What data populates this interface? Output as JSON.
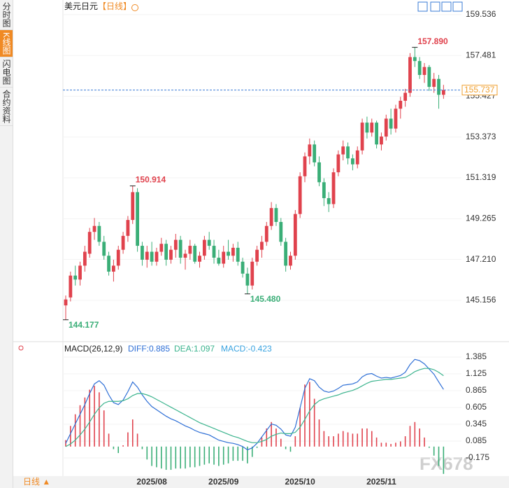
{
  "sidebar": {
    "tabs": [
      "分时图",
      "K线图",
      "闪电图",
      "合约资料"
    ]
  },
  "chart_data": {
    "type": "candlestick",
    "title": "美元日元",
    "period": "【日线】",
    "up_color": "#e0424d",
    "down_color": "#3aae77",
    "categories": [
      null,
      null,
      null,
      null,
      null,
      null,
      null,
      null,
      null,
      null,
      null,
      null,
      null,
      null,
      null,
      null,
      null,
      null,
      "2025/08",
      null,
      null,
      null,
      null,
      null,
      null,
      null,
      null,
      null,
      null,
      null,
      null,
      null,
      null,
      "2025/09",
      null,
      null,
      null,
      null,
      null,
      null,
      null,
      null,
      null,
      null,
      null,
      null,
      null,
      null,
      null,
      "2025/10",
      null,
      null,
      null,
      null,
      null,
      null,
      null,
      null,
      null,
      null,
      null,
      null,
      null,
      null,
      null,
      null,
      "2025/11",
      null,
      null,
      null,
      null,
      null,
      null,
      null,
      null,
      null,
      null,
      null,
      null,
      null
    ],
    "candles": [
      [
        144.9,
        145.4,
        144.177,
        145.2
      ],
      [
        145.3,
        146.6,
        145.1,
        146.4
      ],
      [
        146.4,
        146.9,
        145.9,
        146.2
      ],
      [
        146.2,
        147.1,
        145.9,
        146.9
      ],
      [
        146.9,
        147.9,
        146.6,
        147.6
      ],
      [
        147.5,
        148.8,
        147.3,
        148.6
      ],
      [
        148.6,
        149.3,
        148.2,
        148.9
      ],
      [
        148.9,
        149.1,
        147.9,
        148.1
      ],
      [
        148.1,
        148.4,
        147.2,
        147.4
      ],
      [
        147.4,
        147.6,
        146.4,
        146.6
      ],
      [
        146.6,
        147.2,
        146.1,
        146.9
      ],
      [
        146.9,
        147.9,
        146.7,
        147.7
      ],
      [
        147.7,
        148.6,
        147.5,
        148.4
      ],
      [
        148.4,
        149.4,
        148.1,
        149.2
      ],
      [
        149.2,
        150.914,
        149.0,
        150.6
      ],
      [
        150.6,
        150.8,
        147.6,
        147.9
      ],
      [
        147.9,
        148.1,
        146.9,
        147.2
      ],
      [
        147.2,
        147.9,
        146.8,
        147.6
      ],
      [
        147.6,
        148.1,
        146.9,
        147.1
      ],
      [
        147.1,
        147.8,
        146.9,
        147.6
      ],
      [
        147.6,
        148.3,
        147.4,
        148.0
      ],
      [
        148.0,
        148.2,
        146.9,
        147.2
      ],
      [
        147.2,
        147.9,
        147.0,
        147.7
      ],
      [
        147.7,
        148.5,
        147.3,
        148.2
      ],
      [
        148.2,
        148.4,
        147.0,
        147.3
      ],
      [
        147.3,
        147.7,
        146.7,
        147.5
      ],
      [
        147.5,
        148.2,
        147.2,
        147.9
      ],
      [
        147.9,
        148.0,
        147.0,
        147.1
      ],
      [
        147.1,
        147.6,
        146.8,
        147.4
      ],
      [
        147.4,
        148.4,
        147.2,
        148.2
      ],
      [
        148.2,
        148.6,
        147.7,
        147.9
      ],
      [
        147.9,
        148.2,
        147.0,
        147.3
      ],
      [
        147.3,
        147.7,
        146.9,
        147.0
      ],
      [
        147.0,
        147.9,
        146.8,
        147.6
      ],
      [
        147.6,
        148.2,
        147.2,
        147.4
      ],
      [
        147.4,
        148.0,
        147.1,
        147.8
      ],
      [
        147.8,
        148.1,
        146.9,
        147.1
      ],
      [
        147.1,
        147.3,
        146.3,
        146.5
      ],
      [
        146.5,
        146.8,
        145.48,
        145.9
      ],
      [
        145.9,
        147.3,
        145.7,
        147.1
      ],
      [
        147.1,
        147.9,
        146.9,
        147.7
      ],
      [
        147.7,
        148.4,
        147.3,
        148.1
      ],
      [
        148.1,
        149.1,
        147.9,
        148.9
      ],
      [
        148.9,
        150.1,
        148.7,
        149.8
      ],
      [
        149.8,
        150.0,
        148.9,
        149.1
      ],
      [
        149.1,
        149.3,
        147.9,
        148.1
      ],
      [
        148.1,
        148.3,
        146.6,
        146.9
      ],
      [
        146.9,
        147.6,
        146.7,
        147.4
      ],
      [
        147.4,
        149.7,
        147.2,
        149.5
      ],
      [
        149.5,
        151.6,
        149.3,
        151.4
      ],
      [
        151.4,
        152.6,
        151.1,
        152.4
      ],
      [
        152.4,
        153.3,
        152.0,
        153.0
      ],
      [
        153.0,
        153.2,
        151.9,
        152.1
      ],
      [
        152.1,
        152.4,
        150.9,
        151.1
      ],
      [
        151.1,
        151.3,
        149.9,
        150.3
      ],
      [
        150.3,
        150.6,
        149.6,
        150.0
      ],
      [
        150.0,
        151.8,
        149.8,
        151.6
      ],
      [
        151.6,
        152.7,
        151.4,
        152.5
      ],
      [
        152.5,
        153.2,
        152.2,
        152.9
      ],
      [
        152.9,
        153.1,
        152.0,
        152.3
      ],
      [
        152.3,
        152.5,
        151.7,
        152.0
      ],
      [
        152.0,
        152.9,
        151.8,
        152.7
      ],
      [
        152.7,
        154.3,
        152.5,
        154.1
      ],
      [
        154.1,
        154.4,
        153.3,
        153.6
      ],
      [
        153.6,
        154.3,
        153.4,
        154.1
      ],
      [
        154.1,
        154.2,
        152.8,
        153.0
      ],
      [
        153.0,
        153.6,
        152.7,
        153.4
      ],
      [
        153.4,
        154.5,
        153.2,
        154.3
      ],
      [
        154.3,
        154.8,
        153.5,
        153.8
      ],
      [
        153.8,
        155.0,
        153.6,
        154.8
      ],
      [
        154.8,
        155.4,
        154.3,
        155.2
      ],
      [
        155.2,
        155.8,
        154.9,
        155.6
      ],
      [
        155.6,
        157.6,
        155.4,
        157.4
      ],
      [
        157.4,
        157.89,
        156.9,
        157.2
      ],
      [
        157.2,
        157.4,
        156.3,
        156.5
      ],
      [
        156.5,
        157.1,
        156.1,
        156.9
      ],
      [
        156.9,
        157.0,
        155.7,
        155.9
      ],
      [
        155.9,
        156.6,
        155.6,
        156.3
      ],
      [
        156.3,
        156.5,
        154.8,
        155.5
      ],
      [
        155.5,
        156.0,
        155.3,
        155.737
      ]
    ],
    "ylim": [
      143.18,
      159.99
    ],
    "yticks": [
      159.536,
      157.481,
      155.427,
      153.373,
      151.319,
      149.265,
      {
        "value": 147.21,
        "label": "147.210"
      },
      145.156
    ],
    "last_price": 155.737,
    "last_color": "#f0a030",
    "annotations": [
      {
        "value": 157.89,
        "label": "157.890"
      },
      {
        "value": 150.914,
        "label": "150.914"
      },
      {
        "value": 145.48,
        "label": "145.480"
      },
      {
        "value": 144.177,
        "label": "144.177"
      }
    ],
    "macd": {
      "title": "MACD(26,12,9)",
      "diff_label": "DIFF:0.885",
      "dea_label": "DEA:1.097",
      "macd_label": "MACD:-0.423",
      "ylim": [
        -0.457,
        1.602
      ],
      "yticks": [
        1.385,
        1.125,
        0.865,
        0.605,
        0.345,
        0.085,
        -0.175
      ],
      "series": [
        {
          "name": "DIFF",
          "color": "#2e6fd6",
          "values": [
            0.05,
            0.2,
            0.35,
            0.5,
            0.65,
            0.82,
            0.97,
            1.02,
            0.95,
            0.8,
            0.68,
            0.65,
            0.72,
            0.85,
            1.0,
            0.92,
            0.8,
            0.7,
            0.62,
            0.57,
            0.52,
            0.47,
            0.43,
            0.4,
            0.36,
            0.32,
            0.29,
            0.25,
            0.22,
            0.2,
            0.18,
            0.14,
            0.1,
            0.08,
            0.06,
            0.05,
            0.03,
            0.0,
            -0.05,
            -0.02,
            0.05,
            0.15,
            0.25,
            0.35,
            0.33,
            0.27,
            0.18,
            0.16,
            0.3,
            0.6,
            0.9,
            1.05,
            1.02,
            0.92,
            0.86,
            0.84,
            0.86,
            0.9,
            0.95,
            0.96,
            0.97,
            1.0,
            1.08,
            1.12,
            1.13,
            1.09,
            1.06,
            1.07,
            1.06,
            1.08,
            1.1,
            1.15,
            1.27,
            1.35,
            1.33,
            1.28,
            1.2,
            1.12,
            1.0,
            0.885
          ]
        },
        {
          "name": "DEA",
          "color": "#3cb48e",
          "values": [
            0.0,
            0.04,
            0.1,
            0.18,
            0.27,
            0.38,
            0.5,
            0.6,
            0.67,
            0.7,
            0.7,
            0.7,
            0.71,
            0.74,
            0.79,
            0.82,
            0.82,
            0.8,
            0.77,
            0.73,
            0.69,
            0.65,
            0.61,
            0.57,
            0.53,
            0.49,
            0.45,
            0.41,
            0.37,
            0.34,
            0.31,
            0.28,
            0.25,
            0.22,
            0.19,
            0.16,
            0.14,
            0.11,
            0.08,
            0.06,
            0.06,
            0.08,
            0.11,
            0.16,
            0.19,
            0.21,
            0.2,
            0.2,
            0.22,
            0.3,
            0.42,
            0.55,
            0.65,
            0.71,
            0.74,
            0.76,
            0.78,
            0.8,
            0.83,
            0.85,
            0.87,
            0.9,
            0.94,
            0.98,
            1.01,
            1.02,
            1.03,
            1.04,
            1.04,
            1.05,
            1.06,
            1.07,
            1.11,
            1.16,
            1.19,
            1.21,
            1.21,
            1.19,
            1.15,
            1.097
          ]
        }
      ],
      "hist_color": "#3aa3e0",
      "hist": [
        0.1,
        0.32,
        0.5,
        0.64,
        0.76,
        0.88,
        0.94,
        0.84,
        0.56,
        0.2,
        -0.04,
        -0.1,
        0.02,
        0.22,
        0.42,
        0.2,
        -0.04,
        -0.2,
        -0.3,
        -0.32,
        -0.34,
        -0.36,
        -0.36,
        -0.34,
        -0.34,
        -0.34,
        -0.32,
        -0.32,
        -0.3,
        -0.28,
        -0.26,
        -0.28,
        -0.3,
        -0.28,
        -0.26,
        -0.22,
        -0.22,
        -0.22,
        -0.26,
        -0.16,
        -0.02,
        0.14,
        0.28,
        0.38,
        0.28,
        0.12,
        -0.04,
        -0.08,
        0.16,
        0.6,
        0.96,
        1.0,
        0.74,
        0.42,
        0.24,
        0.16,
        0.16,
        0.2,
        0.24,
        0.22,
        0.2,
        0.2,
        0.28,
        0.28,
        0.24,
        0.14,
        0.06,
        0.06,
        0.04,
        0.06,
        0.08,
        0.16,
        0.32,
        0.38,
        0.28,
        0.14,
        -0.02,
        -0.14,
        -0.3,
        -0.423
      ]
    }
  },
  "footer": {
    "period_button": "日线 ▲",
    "watermark": "FX678"
  }
}
